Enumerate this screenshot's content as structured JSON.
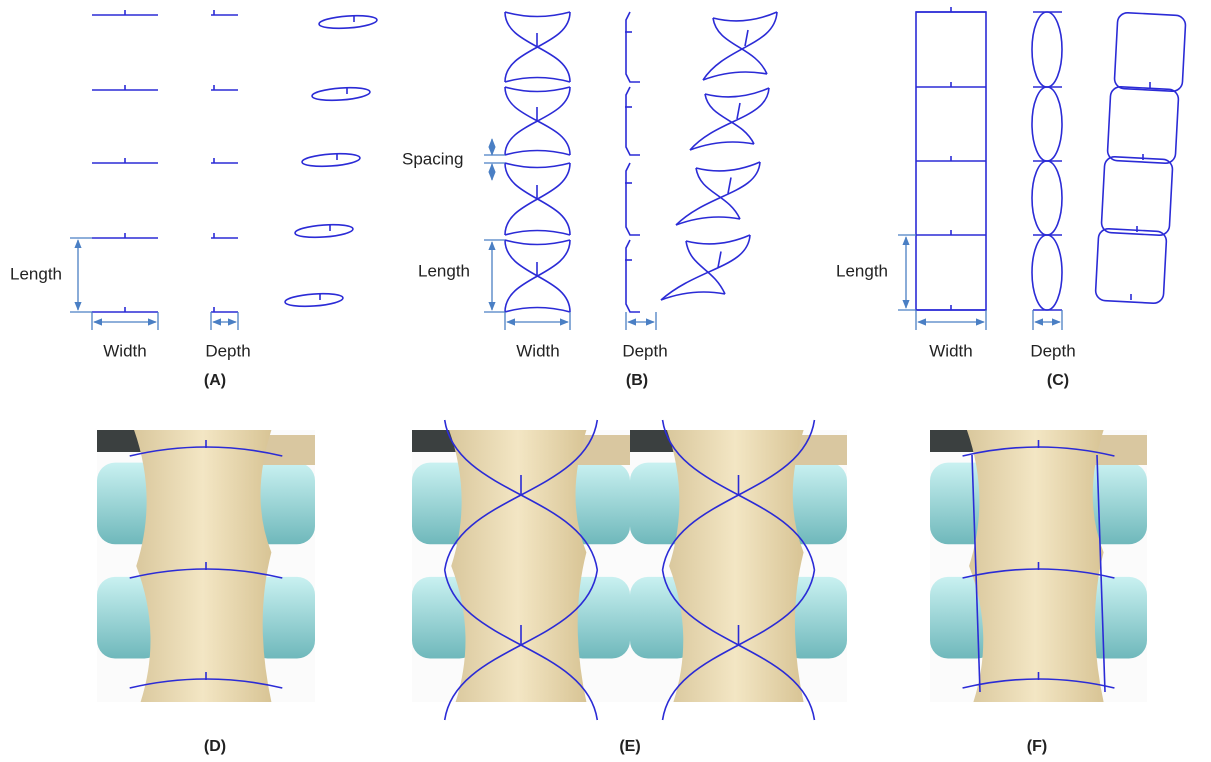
{
  "panels": [
    {
      "label": "(A)",
      "annotations": {
        "length": "Length",
        "width": "Width",
        "depth": "Depth"
      }
    },
    {
      "label": "(B)",
      "annotations": {
        "spacing": "Spacing",
        "length": "Length",
        "width": "Width",
        "depth": "Depth"
      }
    },
    {
      "label": "(C)",
      "annotations": {
        "length": "Length",
        "width": "Width",
        "depth": "Depth"
      }
    },
    {
      "label": "(D)"
    },
    {
      "label": "(E)"
    },
    {
      "label": "(F)"
    }
  ]
}
